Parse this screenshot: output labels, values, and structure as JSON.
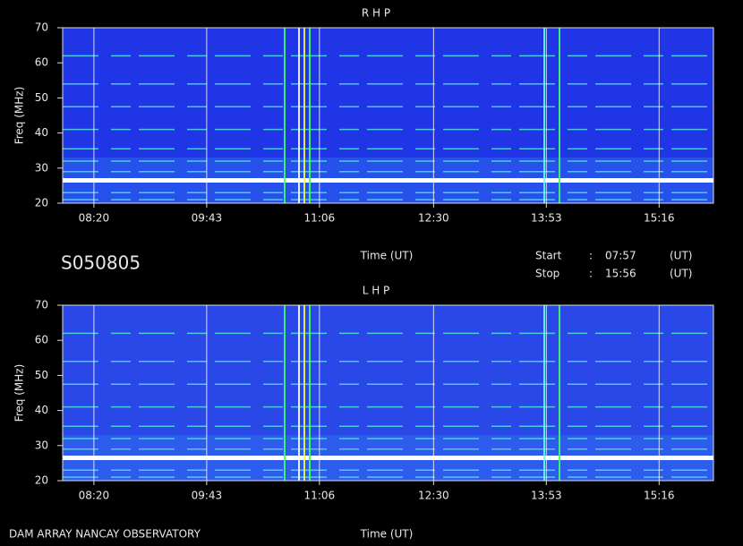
{
  "chart_data": [
    {
      "type": "spectrogram",
      "title": "R H P",
      "ylabel": "Freq (MHz)",
      "xlabel": "Time (UT)",
      "ylim": [
        20,
        70
      ],
      "yticks": [
        20,
        30,
        40,
        50,
        60,
        70
      ],
      "xlim": [
        "07:57",
        "15:56"
      ],
      "xticks": [
        "08:20",
        "09:43",
        "11:06",
        "12:30",
        "13:53",
        "15:16"
      ],
      "grid": true,
      "background": "#1f35e6",
      "band_color": "#4fe3e3",
      "main_band_color": "#ffffff",
      "bands": [
        21,
        23,
        29,
        32,
        35.5,
        41,
        47.5,
        54,
        62
      ],
      "main_band": 26.5
    },
    {
      "type": "spectrogram",
      "title": "L H P",
      "ylabel": "Freq (MHz)",
      "xlabel": "Time (UT)",
      "ylim": [
        20,
        70
      ],
      "yticks": [
        20,
        30,
        40,
        50,
        60,
        70
      ],
      "xlim": [
        "07:57",
        "15:56"
      ],
      "xticks": [
        "08:20",
        "09:43",
        "11:06",
        "12:30",
        "13:53",
        "15:16"
      ],
      "grid": true,
      "background": "#2a48e8",
      "band_color": "#4fe3e3",
      "main_band_color": "#ffffff",
      "bands": [
        21,
        23,
        29,
        32,
        35.5,
        41,
        47.5,
        54,
        62
      ],
      "main_band": 26.5
    }
  ],
  "station": "S050805",
  "start_label": "Start",
  "stop_label": "Stop",
  "separator": ":",
  "unit": "(UT)",
  "footer": "DAM ARRAY  NANCAY OBSERVATORY"
}
